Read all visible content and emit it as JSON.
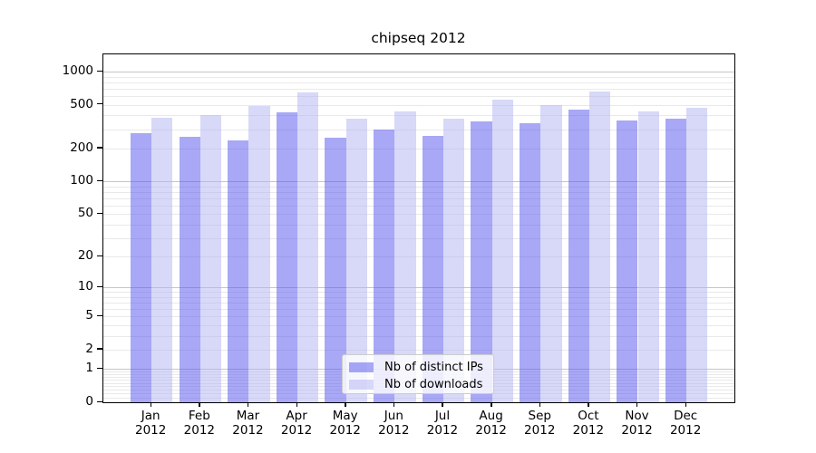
{
  "chart_data": {
    "type": "bar",
    "title": "chipseq 2012",
    "categories": [
      "Jan",
      "Feb",
      "Mar",
      "Apr",
      "May",
      "Jun",
      "Jul",
      "Aug",
      "Sep",
      "Oct",
      "Nov",
      "Dec"
    ],
    "category_year": "2012",
    "series": [
      {
        "name": "Nb of distinct IPs",
        "color": "rgba(82,82,238,0.5)",
        "values": [
          278,
          253,
          238,
          426,
          252,
          300,
          262,
          350,
          341,
          448,
          357,
          371
        ]
      },
      {
        "name": "Nb of downloads",
        "color": "rgba(178,178,242,0.5)",
        "values": [
          377,
          405,
          483,
          650,
          376,
          434,
          371,
          556,
          500,
          663,
          437,
          471
        ]
      }
    ],
    "xlabel": "",
    "ylabel": "",
    "y_ticks": [
      0,
      1,
      2,
      5,
      10,
      20,
      50,
      100,
      200,
      500,
      1000
    ],
    "y_scale": "log10(value+1)",
    "ylim": [
      0,
      1434
    ],
    "grid": true,
    "legend_position": "lower center",
    "colors": {
      "grid_major": "#c6c6c6",
      "grid_minor": "#e9e9e9",
      "axis": "#000000",
      "text": "#000000",
      "legend_border": "#cccccc",
      "legend_bg": "rgba(255,255,255,0.8)"
    }
  }
}
